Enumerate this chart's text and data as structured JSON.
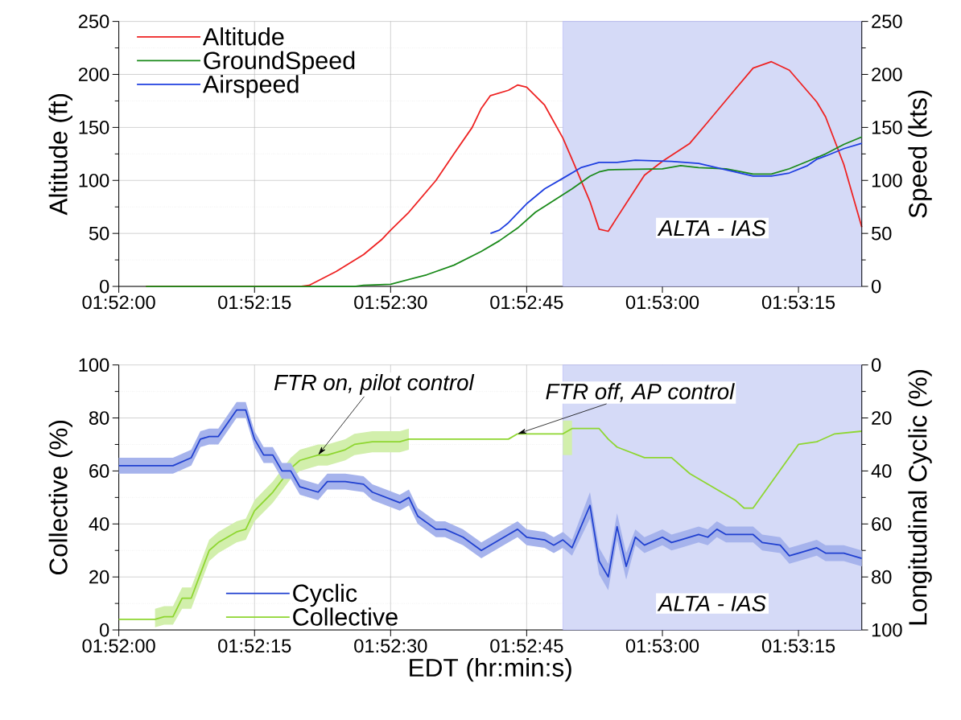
{
  "chart_data": [
    {
      "type": "line",
      "ylabel": "Altitude (ft)",
      "y2label": "Speed (kts)",
      "xlim": [
        1.86667,
        1.88944
      ],
      "xticks": [
        {
          "value": 1.86667,
          "label": "01:52:00"
        },
        {
          "value": 1.87083,
          "label": "01:52:15"
        },
        {
          "value": 1.875,
          "label": "01:52:30"
        },
        {
          "value": 1.87917,
          "label": "01:52:45"
        },
        {
          "value": 1.88333,
          "label": "01:53:00"
        },
        {
          "value": 1.8875,
          "label": "01:53:15"
        }
      ],
      "ylim": [
        0,
        250
      ],
      "yticks": [
        0,
        50,
        100,
        150,
        200,
        250
      ],
      "y2lim": [
        0,
        250
      ],
      "y2ticks": [
        0,
        50,
        100,
        150,
        200,
        250
      ],
      "grid": true,
      "legend": "top left",
      "bands": [
        {
          "axis": "x",
          "from": 1.88028,
          "to": 1.88944,
          "label": "ALTA - IAS",
          "color": "#d5daf7"
        }
      ],
      "series": [
        {
          "name": "Altitude",
          "color": "#ee2222",
          "x": [
            1.8675,
            1.87222,
            1.8725,
            1.87333,
            1.87417,
            1.87472,
            1.875,
            1.87556,
            1.87639,
            1.87694,
            1.8775,
            1.87778,
            1.87806,
            1.87861,
            1.87889,
            1.87917,
            1.87972,
            1.88028,
            1.88056,
            1.88111,
            1.88139,
            1.88167,
            1.88194,
            1.88278,
            1.88333,
            1.88417,
            1.88472,
            1.88556,
            1.88611,
            1.88667,
            1.88722,
            1.88806,
            1.88833,
            1.88889,
            1.88944
          ],
          "values": [
            0,
            0,
            1,
            14,
            30,
            44,
            53,
            70,
            100,
            125,
            150,
            168,
            180,
            185,
            190,
            188,
            171,
            140,
            120,
            80,
            54,
            52,
            65,
            105,
            118,
            135,
            155,
            186,
            206,
            212,
            204,
            174,
            160,
            115,
            56
          ]
        },
        {
          "name": "GroundSpeed",
          "color": "#1a8a1a",
          "axis": "y2",
          "x": [
            1.8675,
            1.87389,
            1.87417,
            1.875,
            1.87611,
            1.87694,
            1.87778,
            1.87833,
            1.87889,
            1.87944,
            1.88,
            1.88056,
            1.88111,
            1.88139,
            1.88167,
            1.88333,
            1.88389,
            1.88444,
            1.88528,
            1.88611,
            1.88667,
            1.88722,
            1.88778,
            1.88833,
            1.88889,
            1.88944
          ],
          "values": [
            0,
            0,
            1,
            2,
            11,
            20,
            33,
            43,
            55,
            70,
            81,
            92,
            104,
            108,
            110,
            111,
            114,
            112,
            111,
            106,
            106,
            111,
            118,
            125,
            134,
            141
          ]
        },
        {
          "name": "Airspeed",
          "color": "#1f3fe0",
          "axis": "y2",
          "x": [
            1.87806,
            1.87833,
            1.87861,
            1.87917,
            1.87972,
            1.88028,
            1.88083,
            1.88139,
            1.88194,
            1.8825,
            1.88361,
            1.88444,
            1.88528,
            1.88611,
            1.88667,
            1.88722,
            1.88778,
            1.88806,
            1.88833,
            1.88889,
            1.88944
          ],
          "values": [
            50,
            53,
            60,
            78,
            92,
            102,
            112,
            117,
            117,
            119,
            118,
            116,
            110,
            104,
            104,
            107,
            114,
            120,
            123,
            130,
            135
          ]
        }
      ]
    },
    {
      "type": "line",
      "xlabel": "EDT (hr:min:s)",
      "ylabel": "Collective (%)",
      "y2label": "Longitudinal Cyclic (%)",
      "xlim": [
        1.86667,
        1.88944
      ],
      "xticks": [
        {
          "value": 1.86667,
          "label": "01:52:00"
        },
        {
          "value": 1.87083,
          "label": "01:52:15"
        },
        {
          "value": 1.875,
          "label": "01:52:30"
        },
        {
          "value": 1.87917,
          "label": "01:52:45"
        },
        {
          "value": 1.88333,
          "label": "01:53:00"
        },
        {
          "value": 1.8875,
          "label": "01:53:15"
        }
      ],
      "ylim": [
        0,
        100
      ],
      "yticks": [
        0,
        20,
        40,
        60,
        80,
        100
      ],
      "y2lim": [
        100,
        0
      ],
      "y2ticks": [
        0,
        20,
        40,
        60,
        80,
        100
      ],
      "grid": true,
      "legend": "bottom left",
      "bands": [
        {
          "axis": "x",
          "from": 1.88028,
          "to": 1.88944,
          "label": "ALTA - IAS",
          "color": "#d5daf7"
        }
      ],
      "annotations": [
        {
          "text": "FTR on, pilot control",
          "x": 1.87278,
          "y": 66
        },
        {
          "text": "FTR off, AP control",
          "x": 1.87889,
          "y": 74
        }
      ],
      "series": [
        {
          "name": "Cyclic",
          "color": "#2040d0",
          "axis": "y2",
          "x": [
            1.86667,
            1.86833,
            1.86889,
            1.86917,
            1.86944,
            1.86972,
            1.87028,
            1.87056,
            1.87083,
            1.87111,
            1.87139,
            1.87167,
            1.87194,
            1.87222,
            1.87278,
            1.87306,
            1.87361,
            1.87417,
            1.87444,
            1.87528,
            1.87556,
            1.87583,
            1.87639,
            1.87667,
            1.87722,
            1.87778,
            1.87861,
            1.87889,
            1.87917,
            1.87972,
            1.88,
            1.88028,
            1.88056,
            1.88111,
            1.88139,
            1.88167,
            1.88194,
            1.88222,
            1.8825,
            1.88278,
            1.88333,
            1.88361,
            1.88389,
            1.88444,
            1.88472,
            1.885,
            1.88528,
            1.88611,
            1.88639,
            1.88694,
            1.88722,
            1.8875,
            1.88806,
            1.88833,
            1.88889,
            1.88944
          ],
          "values": [
            38,
            38,
            35,
            28,
            27,
            27,
            17,
            17,
            28,
            34,
            34,
            40,
            40,
            46,
            48,
            44,
            44,
            45,
            48,
            52,
            50,
            57,
            62,
            62,
            65,
            70,
            64,
            62,
            65,
            66,
            68,
            66,
            69,
            53,
            74,
            80,
            61,
            76,
            65,
            68,
            65,
            67,
            66,
            64,
            65,
            62,
            64,
            64,
            67,
            68,
            72,
            71,
            69,
            71,
            71,
            73
          ],
          "lower": [
            35,
            35,
            32,
            25,
            24,
            24,
            14,
            14,
            25,
            31,
            31,
            37,
            37,
            43,
            45,
            41,
            41,
            42,
            45,
            49,
            47,
            54,
            59,
            59,
            62,
            67,
            61,
            59,
            62,
            63,
            65,
            63,
            66,
            48,
            69,
            75,
            56,
            71,
            62,
            65,
            62,
            64,
            63,
            61,
            62,
            59,
            61,
            61,
            64,
            65,
            69,
            68,
            66,
            68,
            68,
            70
          ],
          "upper": [
            41,
            41,
            38,
            31,
            30,
            30,
            20,
            20,
            31,
            37,
            37,
            43,
            43,
            49,
            51,
            47,
            47,
            48,
            51,
            55,
            53,
            60,
            65,
            65,
            68,
            73,
            67,
            65,
            68,
            69,
            71,
            69,
            72,
            58,
            79,
            85,
            66,
            81,
            68,
            71,
            68,
            70,
            69,
            67,
            68,
            65,
            67,
            67,
            70,
            71,
            75,
            74,
            72,
            74,
            74,
            76
          ]
        },
        {
          "name": "Collective",
          "color": "#8ed630",
          "x": [
            1.86667,
            1.86778,
            1.86806,
            1.86833,
            1.86861,
            1.86889,
            1.86944,
            1.86972,
            1.87028,
            1.87056,
            1.87083,
            1.87139,
            1.87194,
            1.87222,
            1.87278,
            1.87306,
            1.87361,
            1.87389,
            1.87444,
            1.87528,
            1.87556,
            1.87861,
            1.87889,
            1.88,
            1.88028,
            1.88056,
            1.88139,
            1.88167,
            1.88194,
            1.88278,
            1.88361,
            1.88417,
            1.88556,
            1.88583,
            1.88611,
            1.8875,
            1.88806,
            1.88861,
            1.88944
          ],
          "values": [
            4,
            4,
            5,
            5,
            12,
            12,
            30,
            33,
            37,
            38,
            45,
            52,
            61,
            64,
            66,
            66,
            68,
            70,
            71,
            71,
            72,
            72,
            74,
            74,
            74,
            76,
            76,
            72,
            69,
            65,
            65,
            59,
            49,
            46,
            46,
            70,
            71,
            74,
            75
          ],
          "lower": [
            null,
            1,
            2,
            2,
            8,
            8,
            26,
            29,
            33,
            34,
            41,
            48,
            57,
            60,
            62,
            62,
            64,
            66,
            67,
            67,
            68,
            null,
            null,
            null,
            66,
            66,
            null,
            null,
            null,
            null,
            null,
            null,
            null,
            null,
            null,
            null,
            null,
            null,
            null
          ],
          "upper": [
            null,
            8,
            9,
            9,
            16,
            16,
            34,
            37,
            41,
            42,
            49,
            56,
            65,
            68,
            70,
            70,
            72,
            74,
            75,
            75,
            76,
            null,
            null,
            null,
            79,
            79,
            null,
            null,
            null,
            null,
            null,
            null,
            null,
            null,
            null,
            null,
            null,
            null,
            null
          ]
        }
      ]
    }
  ]
}
